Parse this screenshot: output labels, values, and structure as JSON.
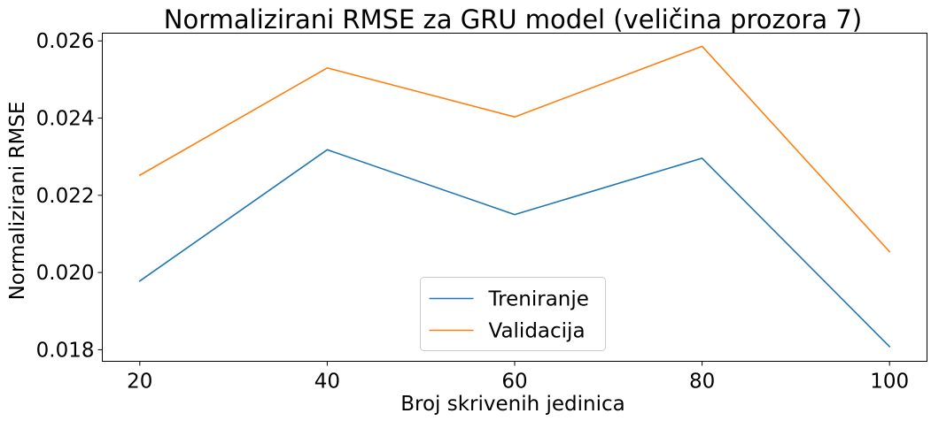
{
  "chart_data": {
    "type": "line",
    "title": "Normalizirani RMSE za GRU model (veličina prozora 7)",
    "xlabel": "Broj skrivenih jedinica",
    "ylabel": "Normalizirani RMSE",
    "x": [
      20,
      40,
      60,
      80,
      100
    ],
    "xlim": [
      16,
      104
    ],
    "ylim": [
      0.0177,
      0.0262
    ],
    "xticks": [
      20,
      40,
      60,
      80,
      100
    ],
    "xtick_labels": [
      "20",
      "40",
      "60",
      "80",
      "100"
    ],
    "yticks": [
      0.018,
      0.02,
      0.022,
      0.024,
      0.026
    ],
    "ytick_labels": [
      "0.018",
      "0.020",
      "0.022",
      "0.024",
      "0.026"
    ],
    "grid": false,
    "legend_position": "bottom-center",
    "series": [
      {
        "name": "Treniranje",
        "color": "#1f77b4",
        "values": [
          0.01978,
          0.02318,
          0.0215,
          0.02296,
          0.01808
        ]
      },
      {
        "name": "Validacija",
        "color": "#ff7f0e",
        "values": [
          0.02252,
          0.0253,
          0.02403,
          0.02586,
          0.02054
        ]
      }
    ]
  }
}
